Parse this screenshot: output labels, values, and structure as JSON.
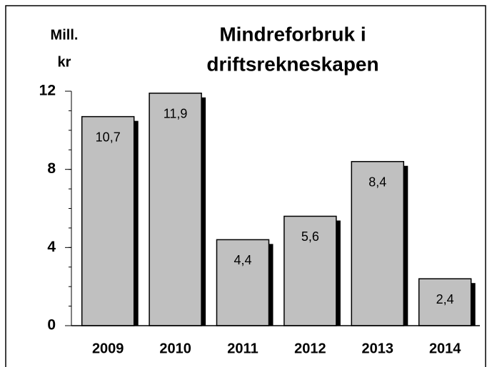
{
  "chart_data": {
    "type": "bar",
    "title": [
      "Mindreforbruk i",
      "driftsrekneskapen"
    ],
    "y_label": [
      "Mill.",
      "kr"
    ],
    "categories": [
      "2009",
      "2010",
      "2011",
      "2012",
      "2013",
      "2014"
    ],
    "values": [
      10.7,
      11.9,
      4.4,
      5.6,
      8.4,
      2.4
    ],
    "value_labels": [
      "10,7",
      "11,9",
      "4,4",
      "5,6",
      "8,4",
      "2,4"
    ],
    "color": "#c0c0c0",
    "ylim": [
      0,
      12
    ],
    "yticks": [
      0,
      4,
      8,
      12
    ],
    "minor_tick_step": 1
  }
}
